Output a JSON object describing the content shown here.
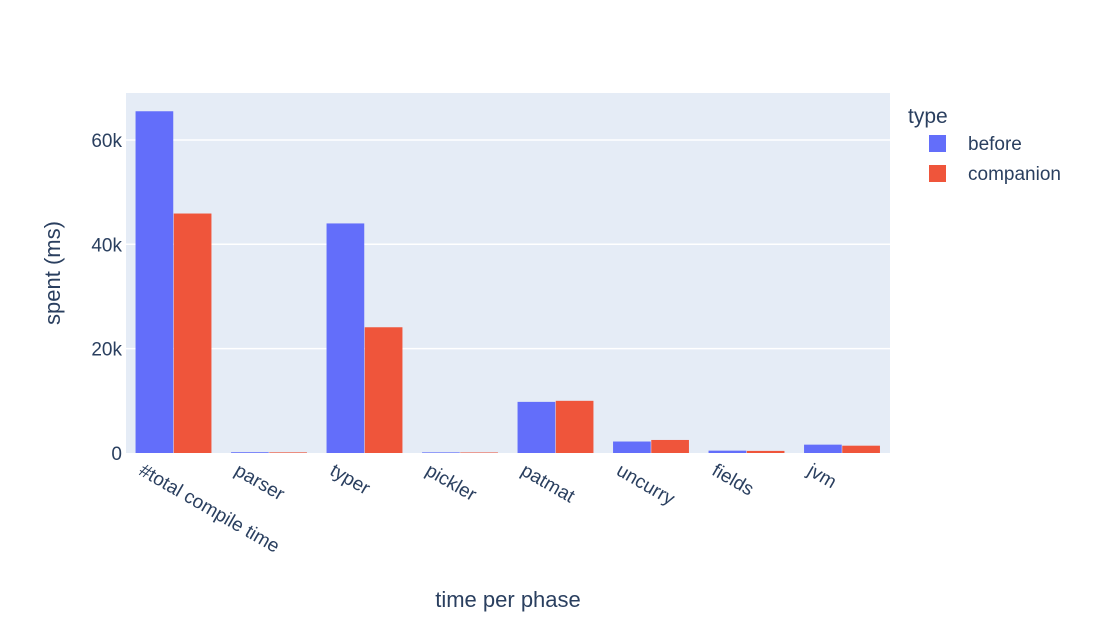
{
  "chart_data": {
    "type": "bar",
    "barmode": "group",
    "xlabel": "time per phase",
    "ylabel": "spent (ms)",
    "categories": [
      "#total compile time",
      "parser",
      "typer",
      "pickler",
      "patmat",
      "uncurry",
      "fields",
      "jvm"
    ],
    "series": [
      {
        "name": "before",
        "color": "#636efa",
        "values": [
          65500,
          150,
          44000,
          120,
          9800,
          2200,
          450,
          1600
        ]
      },
      {
        "name": "companion",
        "color": "#ef553b",
        "values": [
          45900,
          120,
          24100,
          100,
          10000,
          2500,
          400,
          1400
        ]
      }
    ],
    "ylim": [
      0,
      69000
    ],
    "yticks": [
      0,
      20000,
      40000,
      60000
    ],
    "ytick_labels": [
      "0",
      "20k",
      "40k",
      "60k"
    ],
    "grid": true,
    "legend": {
      "title": "type",
      "placement": "right"
    },
    "background_color": "#e5ecf6"
  }
}
